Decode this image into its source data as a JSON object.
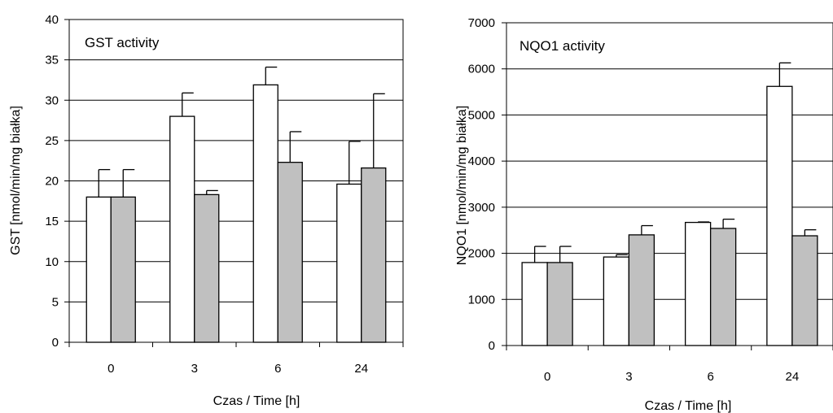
{
  "colors": {
    "series1_fill": "#ffffff",
    "series2_fill": "#c0c0c0",
    "stroke": "#000000",
    "grid": "#000000"
  },
  "chart_data": [
    {
      "type": "bar",
      "title": "GST activity",
      "xlabel": "Czas / Time  [h]",
      "ylabel": "GST [nmol/min/mg białka]",
      "categories": [
        "0",
        "3",
        "6",
        "24"
      ],
      "ylim": [
        0,
        40
      ],
      "yticks": [
        0,
        5,
        10,
        15,
        20,
        25,
        30,
        35,
        40
      ],
      "grid": true,
      "series": [
        {
          "values": [
            18.0,
            28.0,
            31.9,
            19.6
          ],
          "errors": [
            3.4,
            2.9,
            2.2,
            5.3
          ]
        },
        {
          "values": [
            18.0,
            18.3,
            22.3,
            21.6
          ],
          "errors": [
            3.4,
            0.5,
            3.8,
            9.2
          ]
        }
      ]
    },
    {
      "type": "bar",
      "title": "NQO1 activity",
      "xlabel": "Czas / Time [h]",
      "ylabel": "NQO1 [nmol/min/mg białka]",
      "categories": [
        "0",
        "3",
        "6",
        "24"
      ],
      "ylim": [
        0,
        7000
      ],
      "yticks": [
        0,
        1000,
        2000,
        3000,
        4000,
        5000,
        6000,
        7000
      ],
      "grid": true,
      "series": [
        {
          "values": [
            1800,
            1920,
            2670,
            5620
          ],
          "errors": [
            350,
            50,
            10,
            510
          ]
        },
        {
          "values": [
            1800,
            2400,
            2540,
            2380
          ],
          "errors": [
            350,
            200,
            200,
            130
          ]
        }
      ]
    }
  ]
}
